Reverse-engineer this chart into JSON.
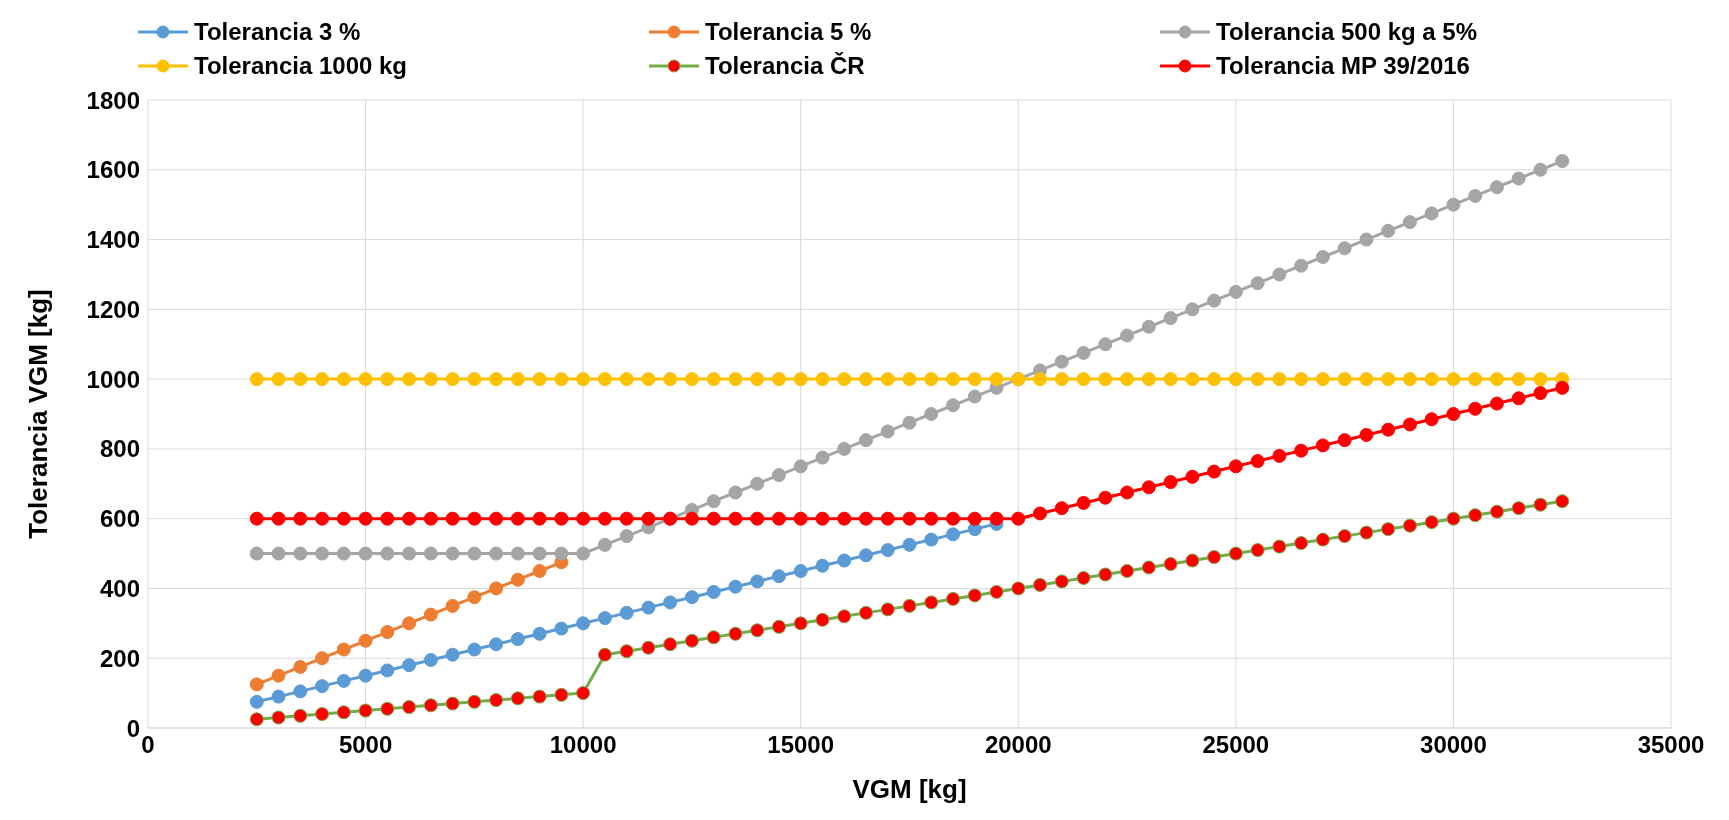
{
  "chart_data": {
    "type": "line",
    "xlabel": "VGM [kg]",
    "ylabel": "Tolerancia VGM [kg]",
    "x": [
      2500,
      3000,
      3500,
      4000,
      4500,
      5000,
      5500,
      6000,
      6500,
      7000,
      7500,
      8000,
      8500,
      9000,
      9500,
      10000,
      10500,
      11000,
      11500,
      12000,
      12500,
      13000,
      13500,
      14000,
      14500,
      15000,
      15500,
      16000,
      16500,
      17000,
      17500,
      18000,
      18500,
      19000,
      19500,
      20000,
      20500,
      21000,
      21500,
      22000,
      22500,
      23000,
      23500,
      24000,
      24500,
      25000,
      25500,
      26000,
      26500,
      27000,
      27500,
      28000,
      28500,
      29000,
      29500,
      30000,
      30500,
      31000,
      31500,
      32000,
      32500
    ],
    "xlim": [
      0,
      35000
    ],
    "xticks": [
      0,
      5000,
      10000,
      15000,
      20000,
      25000,
      30000,
      35000
    ],
    "ylim": [
      0,
      1800
    ],
    "yticks": [
      0,
      200,
      400,
      600,
      800,
      1000,
      1200,
      1400,
      1600,
      1800
    ],
    "grid": true,
    "legend": "top",
    "marker": "circle",
    "line_style": "solid",
    "series": [
      {
        "name": "Tolerancia 3 %",
        "color": "#5b9bd5",
        "values": [
          75,
          90,
          105,
          120,
          135,
          150,
          165,
          180,
          195,
          210,
          225,
          240,
          255,
          270,
          285,
          300,
          315,
          330,
          345,
          360,
          375,
          390,
          405,
          420,
          435,
          450,
          465,
          480,
          495,
          510,
          525,
          540,
          555,
          570,
          585,
          null,
          null,
          null,
          null,
          null,
          null,
          null,
          null,
          null,
          null,
          null,
          null,
          null,
          null,
          null,
          null,
          null,
          null,
          null,
          null,
          null,
          null,
          null,
          null,
          null,
          null
        ]
      },
      {
        "name": "Tolerancia 5 %",
        "color": "#ed7d31",
        "values": [
          125,
          150,
          175,
          200,
          225,
          250,
          275,
          300,
          325,
          350,
          375,
          400,
          425,
          450,
          475,
          null,
          null,
          null,
          null,
          null,
          null,
          null,
          null,
          null,
          null,
          null,
          null,
          null,
          null,
          null,
          null,
          null,
          null,
          null,
          null,
          null,
          null,
          null,
          null,
          null,
          null,
          null,
          null,
          null,
          null,
          null,
          null,
          null,
          null,
          null,
          null,
          null,
          null,
          null,
          null,
          null,
          null,
          null,
          null,
          null,
          null
        ]
      },
      {
        "name": "Tolerancia 500 kg a 5%",
        "color": "#a5a5a5",
        "values": [
          500,
          500,
          500,
          500,
          500,
          500,
          500,
          500,
          500,
          500,
          500,
          500,
          500,
          500,
          500,
          500,
          525,
          550,
          575,
          600,
          625,
          650,
          675,
          700,
          725,
          750,
          775,
          800,
          825,
          850,
          875,
          900,
          925,
          950,
          975,
          1000,
          1025,
          1050,
          1075,
          1100,
          1125,
          1150,
          1175,
          1200,
          1225,
          1250,
          1275,
          1300,
          1325,
          1350,
          1375,
          1400,
          1425,
          1450,
          1475,
          1500,
          1525,
          1550,
          1575,
          1600,
          1625
        ]
      },
      {
        "name": "Tolerancia 1000 kg",
        "color": "#ffc000",
        "values": [
          1000,
          1000,
          1000,
          1000,
          1000,
          1000,
          1000,
          1000,
          1000,
          1000,
          1000,
          1000,
          1000,
          1000,
          1000,
          1000,
          1000,
          1000,
          1000,
          1000,
          1000,
          1000,
          1000,
          1000,
          1000,
          1000,
          1000,
          1000,
          1000,
          1000,
          1000,
          1000,
          1000,
          1000,
          1000,
          1000,
          1000,
          1000,
          1000,
          1000,
          1000,
          1000,
          1000,
          1000,
          1000,
          1000,
          1000,
          1000,
          1000,
          1000,
          1000,
          1000,
          1000,
          1000,
          1000,
          1000,
          1000,
          1000,
          1000,
          1000,
          1000
        ]
      },
      {
        "name": "Tolerancia ČR",
        "color": "#70ad47",
        "colors": [
          "#ff0000",
          "#ff0000",
          "#ff0000",
          "#ff0000",
          "#ff0000",
          "#ff0000",
          "#ff0000",
          "#ff0000",
          "#ff0000",
          "#ff0000",
          "#ff0000",
          "#ff0000",
          "#ff0000",
          "#ff0000",
          "#ff0000",
          "#ff0000",
          "#ff0000",
          "#ff0000",
          "#ff0000",
          "#ff0000",
          "#ff0000",
          "#ff0000",
          "#ff0000",
          "#ff0000",
          "#ff0000",
          "#ff0000",
          "#ff0000",
          "#ff0000",
          "#ff0000",
          "#ff0000",
          "#ff0000",
          "#ff0000",
          "#ff0000",
          "#ff0000",
          "#ff0000",
          "#ff0000",
          "#ff0000",
          "#ff0000",
          "#ff0000",
          "#ff0000",
          "#ff0000",
          "#ff0000",
          "#ff0000",
          "#ff0000",
          "#ff0000",
          "#ff0000",
          "#ff0000",
          "#ff0000",
          "#ff0000",
          "#ff0000",
          "#ff0000",
          "#ff0000",
          "#ff0000",
          "#ff0000",
          "#ff0000",
          "#ff0000",
          "#ff0000",
          "#ff0000",
          "#ff0000",
          "#ff0000",
          "#ff0000"
        ],
        "values": [
          25,
          30,
          35,
          40,
          45,
          50,
          55,
          60,
          65,
          70,
          75,
          80,
          85,
          90,
          95,
          100,
          210,
          220,
          230,
          240,
          250,
          260,
          270,
          280,
          290,
          300,
          310,
          320,
          330,
          340,
          350,
          360,
          370,
          380,
          390,
          400,
          410,
          420,
          430,
          440,
          450,
          460,
          470,
          480,
          490,
          500,
          510,
          520,
          530,
          540,
          550,
          560,
          570,
          580,
          590,
          600,
          610,
          620,
          630,
          640,
          650
        ]
      },
      {
        "name": "Tolerancia MP 39/2016",
        "color": "#ff0000",
        "values": [
          600,
          600,
          600,
          600,
          600,
          600,
          600,
          600,
          600,
          600,
          600,
          600,
          600,
          600,
          600,
          600,
          600,
          600,
          600,
          600,
          600,
          600,
          600,
          600,
          600,
          600,
          600,
          600,
          600,
          600,
          600,
          600,
          600,
          600,
          600,
          600,
          615,
          630,
          645,
          660,
          675,
          690,
          705,
          720,
          735,
          750,
          765,
          780,
          795,
          810,
          825,
          840,
          855,
          870,
          885,
          900,
          915,
          930,
          945,
          960,
          975
        ]
      }
    ]
  }
}
